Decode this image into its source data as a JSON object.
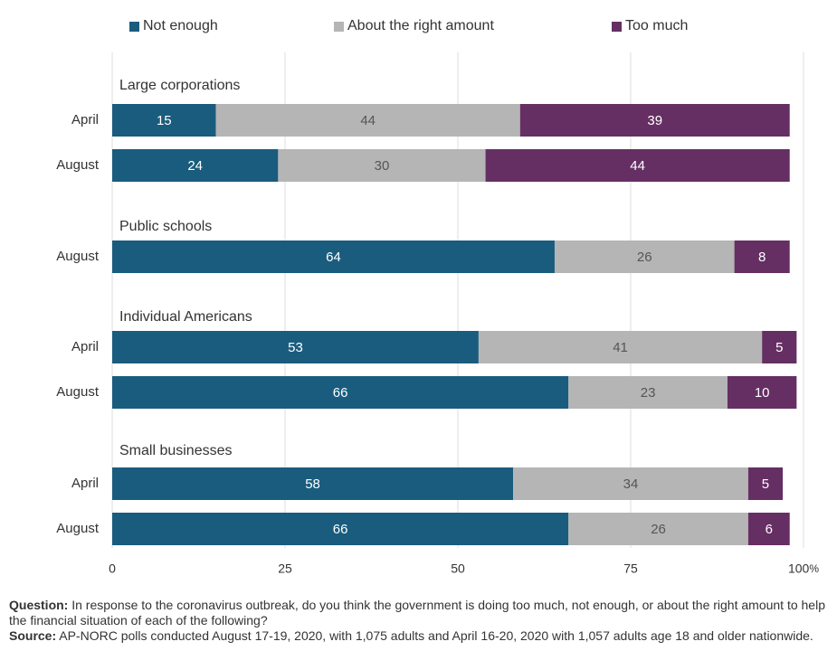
{
  "chart_data": {
    "type": "bar",
    "orientation": "horizontal",
    "stacked": true,
    "legend": {
      "position": "top",
      "items": [
        {
          "key": "not_enough",
          "label": "Not enough",
          "color": "#1a5c7d"
        },
        {
          "key": "right_amount",
          "label": "About the right amount",
          "color": "#b5b5b5"
        },
        {
          "key": "too_much",
          "label": "Too much",
          "color": "#652f63"
        }
      ]
    },
    "x_axis": {
      "range": [
        0,
        100
      ],
      "ticks": [
        {
          "value": 0,
          "label": "0"
        },
        {
          "value": 25,
          "label": "25"
        },
        {
          "value": 50,
          "label": "50"
        },
        {
          "value": 75,
          "label": "75"
        },
        {
          "value": 100,
          "label": "100"
        }
      ],
      "unit_suffix": "%",
      "gridlines": true
    },
    "groups": [
      {
        "title": "Large corporations",
        "rows": [
          {
            "label": "April",
            "values": [
              15,
              44,
              39
            ]
          },
          {
            "label": "August",
            "values": [
              24,
              30,
              44
            ]
          }
        ]
      },
      {
        "title": "Public schools",
        "rows": [
          {
            "label": "August",
            "values": [
              64,
              26,
              8
            ]
          }
        ]
      },
      {
        "title": "Individual Americans",
        "rows": [
          {
            "label": "April",
            "values": [
              53,
              41,
              5
            ]
          },
          {
            "label": "August",
            "values": [
              66,
              23,
              10
            ]
          }
        ]
      },
      {
        "title": "Small businesses",
        "rows": [
          {
            "label": "April",
            "values": [
              58,
              34,
              5
            ]
          },
          {
            "label": "August",
            "values": [
              66,
              26,
              6
            ]
          }
        ]
      }
    ]
  },
  "footer": {
    "question_label": "Question:",
    "question_text": "In response to the coronavirus outbreak, do you think the government is doing too much, not enough, or about the right amount to help the financial situation of each of the following?",
    "source_label": "Source:",
    "source_text": "AP-NORC polls conducted August 17-19, 2020, with 1,075 adults and April 16-20, 2020 with 1,057 adults age 18 and older nationwide."
  }
}
